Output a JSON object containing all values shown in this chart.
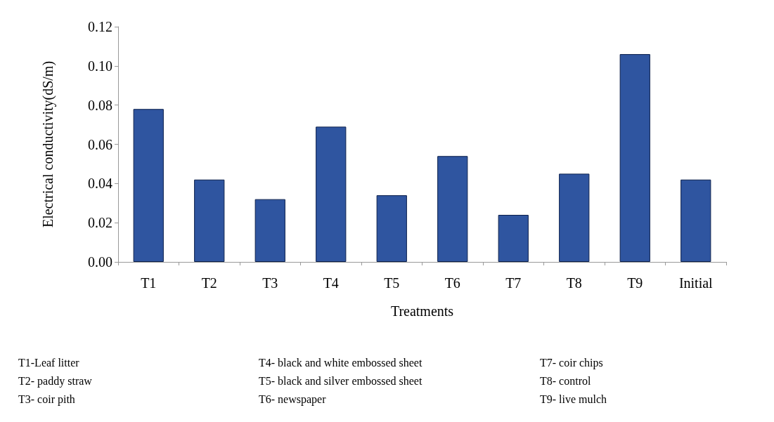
{
  "chart_data": {
    "type": "bar",
    "xlabel": "Treatments",
    "ylabel": "Electrical conductivity(dS/m)",
    "categories": [
      "T1",
      "T2",
      "T3",
      "T4",
      "T5",
      "T6",
      "T7",
      "T8",
      "T9",
      "Initial"
    ],
    "values": [
      0.078,
      0.042,
      0.032,
      0.069,
      0.034,
      0.054,
      0.024,
      0.045,
      0.106,
      0.042
    ],
    "color": "#2f55a0",
    "ylim": [
      0,
      0.12
    ],
    "yticks": [
      {
        "value": 0,
        "label": "0.00"
      },
      {
        "value": 0.02,
        "label": "0.02"
      },
      {
        "value": 0.04,
        "label": "0.04"
      },
      {
        "value": 0.06,
        "label": "0.06"
      },
      {
        "value": 0.08,
        "label": "0.08"
      },
      {
        "value": 0.1,
        "label": "0.10"
      },
      {
        "value": 0.12,
        "label": "0.12"
      }
    ],
    "grid": false,
    "annotations": [
      "T1-Leaf litter",
      "T2- paddy straw",
      "T3- coir pith",
      "T4- black and white embossed sheet",
      "T5- black and silver embossed sheet",
      "T6- newspaper",
      "T7- coir chips",
      "T8- control",
      "T9- live mulch"
    ]
  }
}
